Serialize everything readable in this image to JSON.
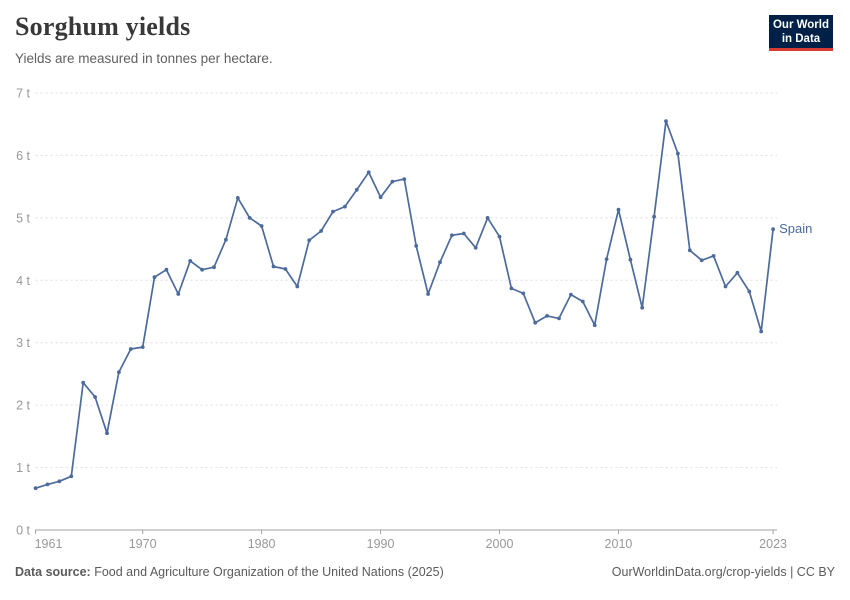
{
  "header": {
    "title": "Sorghum yields",
    "subtitle": "Yields are measured in tonnes per hectare.",
    "logo": {
      "line1": "Our World",
      "line2": "in Data",
      "bg_color": "#002147",
      "accent_color": "#D73C32",
      "text_color": "#ffffff"
    }
  },
  "chart_data": {
    "type": "line",
    "title": "Sorghum yields",
    "subtitle": "Yields are measured in tonnes per hectare.",
    "unit": "t",
    "ylabel": "tonnes per hectare",
    "xlim": [
      1961,
      2023
    ],
    "ylim": [
      0,
      7
    ],
    "grid": "horizontal-dashed",
    "legend_position": "end-of-line",
    "x_ticks": [
      {
        "value": 1961,
        "label": "1961"
      },
      {
        "value": 1970,
        "label": "1970"
      },
      {
        "value": 1980,
        "label": "1980"
      },
      {
        "value": 1990,
        "label": "1990"
      },
      {
        "value": 2000,
        "label": "2000"
      },
      {
        "value": 2010,
        "label": "2010"
      },
      {
        "value": 2023,
        "label": "2023"
      }
    ],
    "y_ticks": [
      {
        "value": 0,
        "label": "0 t"
      },
      {
        "value": 1,
        "label": "1 t"
      },
      {
        "value": 2,
        "label": "2 t"
      },
      {
        "value": 3,
        "label": "3 t"
      },
      {
        "value": 4,
        "label": "4 t"
      },
      {
        "value": 5,
        "label": "5 t"
      },
      {
        "value": 6,
        "label": "6 t"
      },
      {
        "value": 7,
        "label": "7 t"
      }
    ],
    "series": [
      {
        "name": "Spain",
        "color": "#4C6A9C",
        "years": [
          1961,
          1962,
          1963,
          1964,
          1965,
          1966,
          1967,
          1968,
          1969,
          1970,
          1971,
          1972,
          1973,
          1974,
          1975,
          1976,
          1977,
          1978,
          1979,
          1980,
          1981,
          1982,
          1983,
          1984,
          1985,
          1986,
          1987,
          1988,
          1989,
          1990,
          1991,
          1992,
          1993,
          1994,
          1995,
          1996,
          1997,
          1998,
          1999,
          2000,
          2001,
          2002,
          2003,
          2004,
          2005,
          2006,
          2007,
          2008,
          2009,
          2010,
          2011,
          2012,
          2013,
          2014,
          2015,
          2016,
          2017,
          2018,
          2019,
          2020,
          2021,
          2022,
          2023
        ],
        "values": [
          0.67,
          0.73,
          0.78,
          0.86,
          2.36,
          2.13,
          1.55,
          2.53,
          2.9,
          2.93,
          4.05,
          4.17,
          3.78,
          4.31,
          4.17,
          4.21,
          4.65,
          5.32,
          5.0,
          4.87,
          4.22,
          4.18,
          3.9,
          4.64,
          4.79,
          5.1,
          5.18,
          5.45,
          5.73,
          5.33,
          5.58,
          5.62,
          4.55,
          3.78,
          4.29,
          4.72,
          4.75,
          4.52,
          5.0,
          4.7,
          3.87,
          3.79,
          3.32,
          3.43,
          3.39,
          3.77,
          3.66,
          3.28,
          4.34,
          5.13,
          4.33,
          3.56,
          5.02,
          6.55,
          6.03,
          4.48,
          4.32,
          4.39,
          3.9,
          4.12,
          3.82,
          3.18,
          4.82
        ]
      }
    ]
  },
  "footer": {
    "source_label": "Data source:",
    "source_text": "Food and Agriculture Organization of the United Nations (2025)",
    "credit": "OurWorldinData.org/crop-yields | CC BY"
  },
  "colors": {
    "background": "#ffffff",
    "title_text": "#383838",
    "subtitle_text": "#606060",
    "grid_line": "#dddddd",
    "axis_line": "#a3a3a3",
    "tick_text": "#999999",
    "footer_text": "#5b5b5b",
    "series_line": "#4C6A9C"
  }
}
